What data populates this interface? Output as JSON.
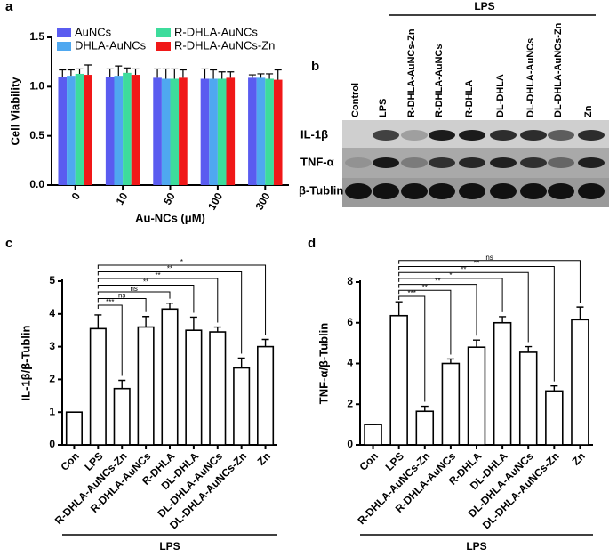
{
  "chart_data": [
    {
      "type": "grouped-bar",
      "panel": "a",
      "xlabel": "Au-NCs (μM)",
      "ylabel": "Cell Viability",
      "categories": [
        "0",
        "10",
        "50",
        "100",
        "300"
      ],
      "series": [
        {
          "name": "AuNCs",
          "color": "#5a5cf0",
          "values": [
            1.1,
            1.1,
            1.09,
            1.08,
            1.09
          ],
          "errors": [
            0.07,
            0.08,
            0.09,
            0.1,
            0.03
          ]
        },
        {
          "name": "DHLA-AuNCs",
          "color": "#4fa8f0",
          "values": [
            1.11,
            1.11,
            1.08,
            1.08,
            1.09
          ],
          "errors": [
            0.06,
            0.1,
            0.1,
            0.09,
            0.04
          ]
        },
        {
          "name": "R-DHLA-AuNCs",
          "color": "#3ddc9c",
          "values": [
            1.13,
            1.14,
            1.08,
            1.08,
            1.08
          ],
          "errors": [
            0.05,
            0.05,
            0.1,
            0.07,
            0.05
          ]
        },
        {
          "name": "R-DHLA-AuNCs-Zn",
          "color": "#f01818",
          "values": [
            1.12,
            1.12,
            1.09,
            1.09,
            1.07
          ],
          "errors": [
            0.1,
            0.06,
            0.08,
            0.06,
            0.1
          ]
        }
      ],
      "ylim": [
        0,
        1.5
      ],
      "yticks": [
        {
          "value": 0,
          "label": "0.0"
        },
        0.5,
        {
          "value": 1,
          "label": "1.0"
        },
        1.5
      ],
      "legend": "top"
    },
    {
      "type": "bar",
      "panel": "c",
      "ylabel": "IL-1β/β-Tublin",
      "group_label": "LPS",
      "color": "#ffffff",
      "categories": [
        "Con",
        "LPS",
        "R-DHLA-AuNCs-Zn",
        "R-DHLA-AuNCs",
        "R-DHLA",
        "DL-DHLA",
        "DL-DHLA-AuNCs",
        "DL-DHLA-AuNCs-Zn",
        "Zn"
      ],
      "values": [
        1,
        3.55,
        1.72,
        3.6,
        4.15,
        3.5,
        3.45,
        2.35,
        3.0
      ],
      "errors": [
        0,
        0.42,
        0.25,
        0.32,
        0.18,
        0.4,
        0.15,
        0.3,
        0.22
      ],
      "significance": [
        null,
        null,
        "***",
        "ns",
        "ns",
        "**",
        "**",
        "**",
        "*"
      ],
      "ylim": [
        0,
        5
      ],
      "yticks": [
        0,
        1,
        2,
        3,
        4,
        5
      ]
    },
    {
      "type": "bar",
      "panel": "d",
      "ylabel": "TNF-α/β-Tublin",
      "group_label": "LPS",
      "color": "#ffffff",
      "categories": [
        "Con",
        "LPS",
        "R-DHLA-AuNCs-Zn",
        "R-DHLA-AuNCs",
        "R-DHLA",
        "DL-DHLA",
        "DL-DHLA-AuNCs",
        "DL-DHLA-AuNCs-Zn",
        "Zn"
      ],
      "values": [
        1,
        6.35,
        1.65,
        4.0,
        4.8,
        6.0,
        4.55,
        2.65,
        6.15
      ],
      "errors": [
        0,
        0.68,
        0.25,
        0.22,
        0.35,
        0.3,
        0.28,
        0.25,
        0.62
      ],
      "significance": [
        null,
        null,
        "***",
        "**",
        "**",
        "*",
        "**",
        "**",
        "ns"
      ],
      "ylim": [
        0,
        8
      ],
      "yticks": [
        0,
        2,
        4,
        6,
        8
      ]
    }
  ],
  "blot": {
    "panel": "b",
    "group_label": "LPS",
    "lanes": [
      "Control",
      "LPS",
      "R-DHLA-AuNCs-Zn",
      "R-DHLA-AuNCs",
      "R-DHLA",
      "DL-DHLA",
      "DL-DHLA-AuNCs",
      "DL-DHLA-AuNCs-Zn",
      "Zn"
    ],
    "rows": [
      "IL-1β",
      "TNF-α",
      "β-Tublin"
    ]
  }
}
